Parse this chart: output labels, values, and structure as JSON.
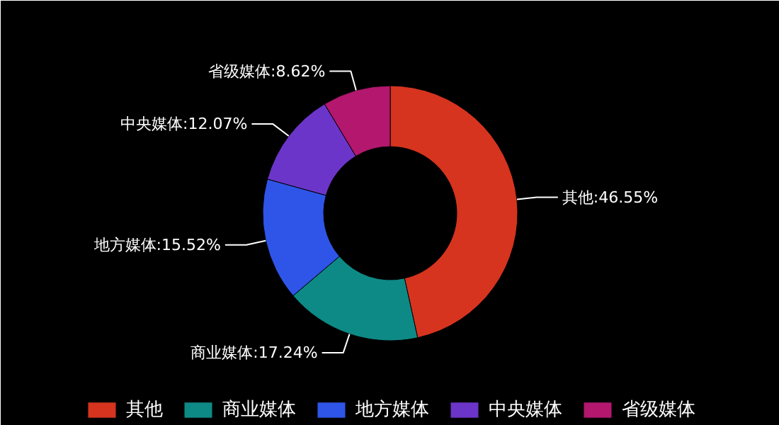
{
  "chart_data": {
    "type": "donut",
    "categories": [
      "其他",
      "商业媒体",
      "地方媒体",
      "中央媒体",
      "省级媒体"
    ],
    "values": [
      46.55,
      17.24,
      15.52,
      12.07,
      8.62
    ],
    "colors": [
      "#d6341f",
      "#0e8a86",
      "#2f55e8",
      "#6c35c9",
      "#b3176e"
    ],
    "value_labels": [
      "其他:46.55%",
      "商业媒体:17.24%",
      "地方媒体:15.52%",
      "中央媒体:12.07%",
      "省级媒体:8.62%"
    ],
    "legend": "bottom"
  }
}
